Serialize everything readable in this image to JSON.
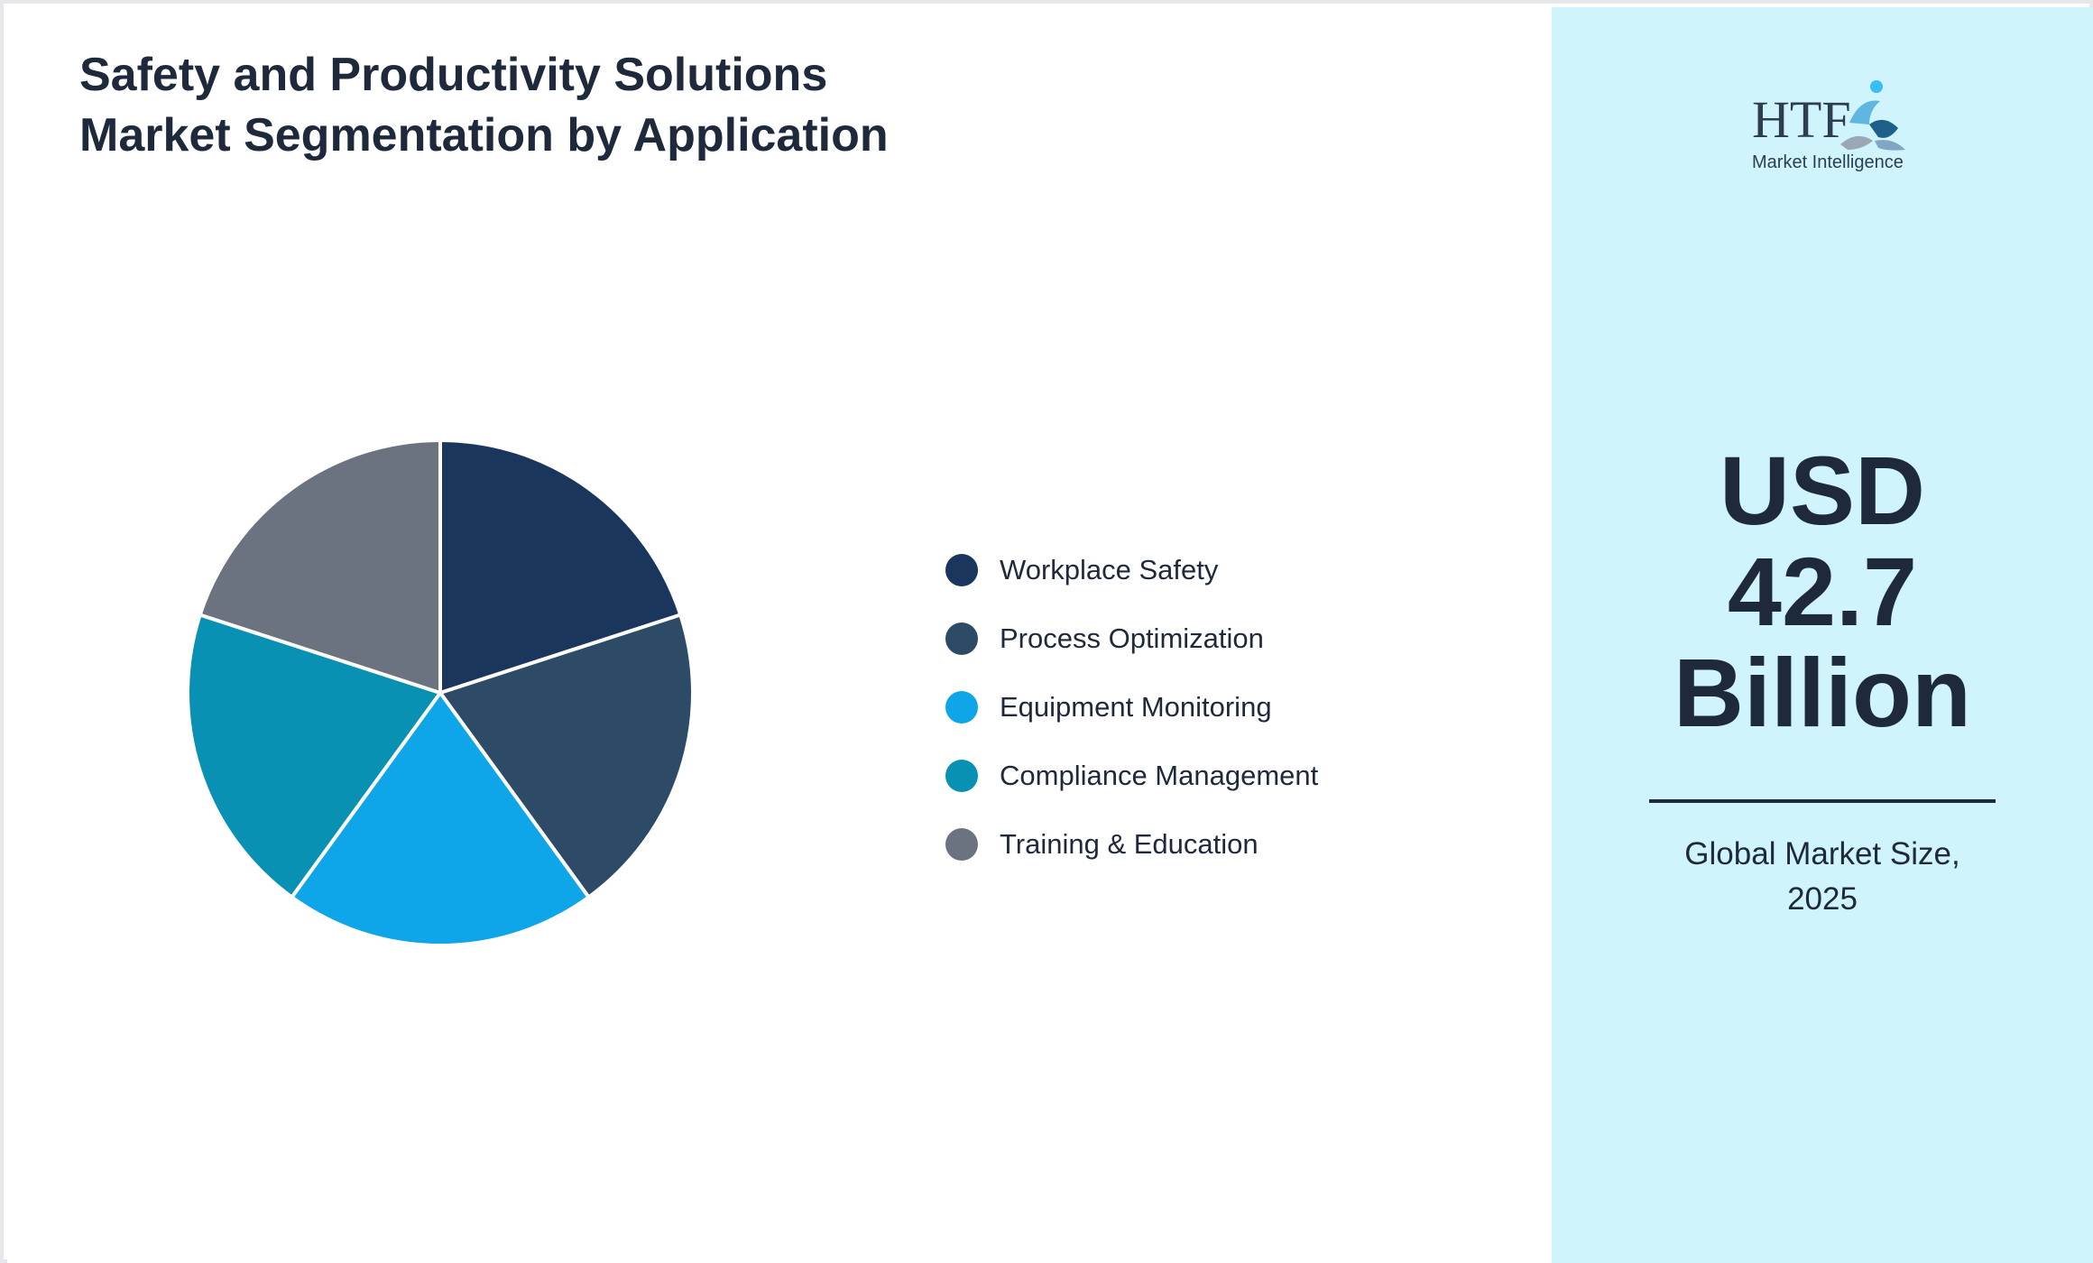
{
  "chart_data": {
    "type": "pie",
    "title": "Safety and Productivity Solutions Market Segmentation by Application",
    "categories": [
      "Workplace Safety",
      "Process Optimization",
      "Equipment Monitoring",
      "Compliance Management",
      "Training & Education"
    ],
    "values": [
      20,
      20,
      20,
      20,
      20
    ],
    "colors": [
      "#1b365d",
      "#2d4a66",
      "#0ea5e9",
      "#0891b2",
      "#6b7280"
    ],
    "legend": "right",
    "slice_border_color": "#ffffff"
  },
  "sidebar": {
    "logo": {
      "icon": "htf-logo-icon",
      "wordmark": "HTF",
      "tagline": "Market Intelligence",
      "colors": [
        "#1e3a5f",
        "#38bdf8",
        "#94a3b8"
      ]
    },
    "market_value": {
      "line1": "USD",
      "line2": "42.7",
      "line3": "Billion"
    },
    "caption": {
      "line1": "Global Market Size,",
      "line2": "2025"
    },
    "background": "#cff4fc"
  }
}
